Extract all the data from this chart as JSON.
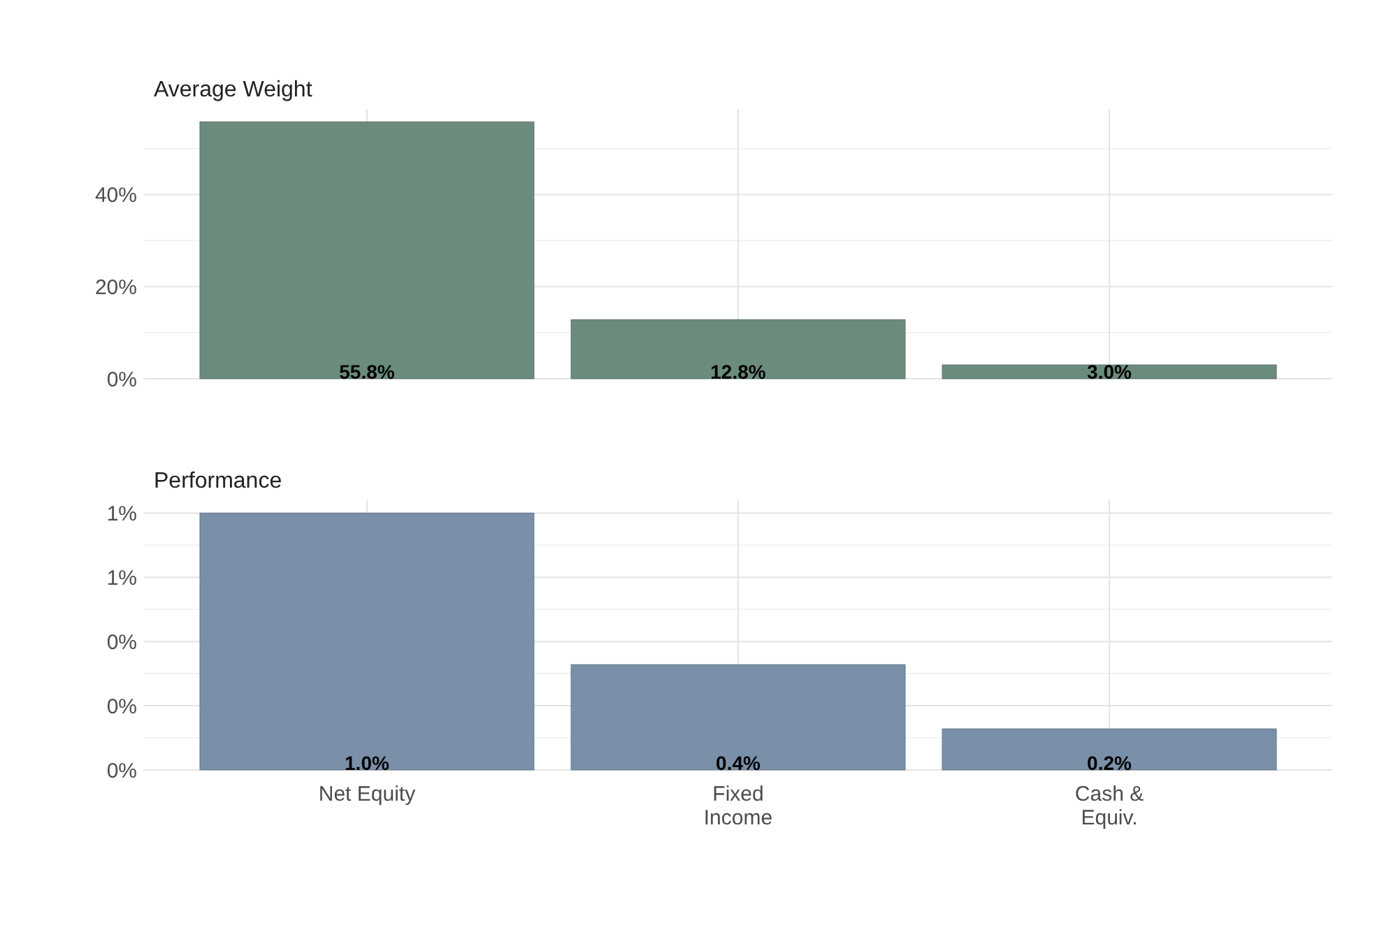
{
  "chart_data": [
    {
      "type": "bar",
      "title": "Average Weight",
      "categories": [
        null,
        null,
        null
      ],
      "values": [
        55.8,
        12.8,
        3.0
      ],
      "color": "#6b8c7d",
      "ylim": [
        0,
        58.6
      ],
      "yticks": [
        {
          "value": 0,
          "label": "0%"
        },
        {
          "value": 20,
          "label": "20%"
        },
        {
          "value": 40,
          "label": "40%"
        }
      ],
      "value_labels": [
        "55.8%",
        "12.8%",
        "3.0%"
      ],
      "grid": true
    },
    {
      "type": "bar",
      "title": "Performance",
      "categories": [
        "Net Equity",
        "Fixed\nIncome",
        "Cash &\nEquiv."
      ],
      "values": [
        1.0,
        0.41,
        0.16
      ],
      "color": "#7a90a8",
      "ylim": [
        0,
        1.05
      ],
      "yticks": [
        {
          "value": 0,
          "label": "0%"
        },
        {
          "value": 0.25,
          "label": "0%"
        },
        {
          "value": 0.5,
          "label": "0%"
        },
        {
          "value": 0.75,
          "label": "1%"
        },
        {
          "value": 1.0,
          "label": "1%"
        }
      ],
      "value_labels": [
        "1.0%",
        "0.4%",
        "0.2%"
      ],
      "grid": true
    }
  ]
}
